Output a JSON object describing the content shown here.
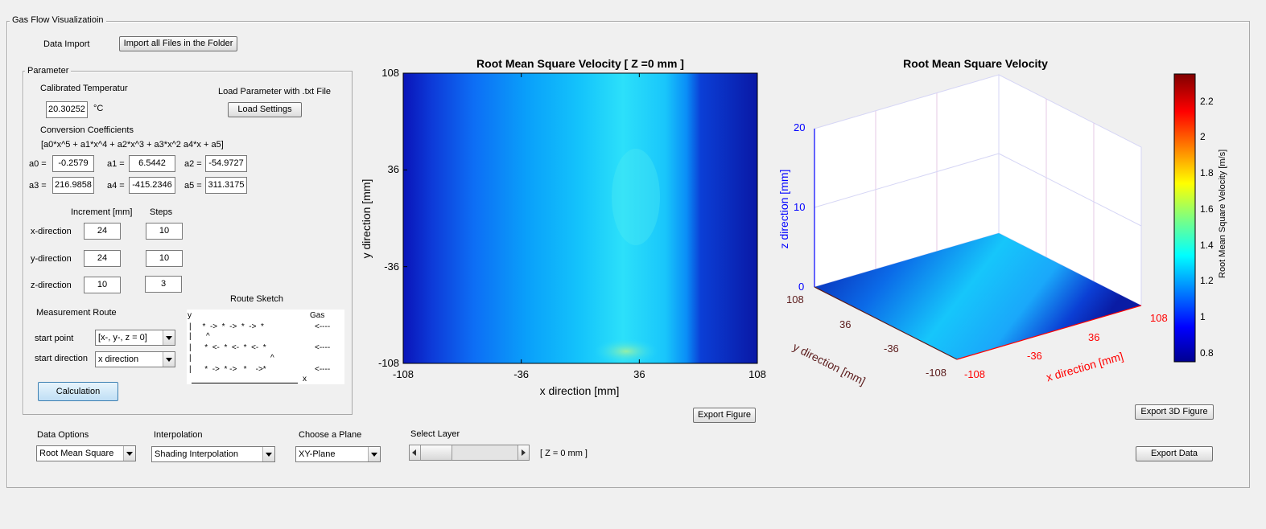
{
  "panel": {
    "title": "Gas Flow Visualizatioin"
  },
  "import": {
    "label": "Data Import",
    "button": "Import all Files in the Folder"
  },
  "parameter": {
    "title": "Parameter",
    "calibrated_label": "Calibrated Temperatur",
    "temperature": "20.30252",
    "temp_unit": "°C",
    "load_label": "Load Parameter with .txt File",
    "load_button": "Load Settings",
    "conv_label": "Conversion Coefficients",
    "formula": "[a0*x^5 + a1*x^4 + a2*x^3 + a3*x^2 a4*x + a5]",
    "coeffs": [
      {
        "label": "a0 =",
        "value": "-0.2579"
      },
      {
        "label": "a1 =",
        "value": "6.5442"
      },
      {
        "label": "a2 =",
        "value": "-54.9727"
      },
      {
        "label": "a3 =",
        "value": "216.9858"
      },
      {
        "label": "a4 =",
        "value": "-415.2346"
      },
      {
        "label": "a5 =",
        "value": "311.3175"
      }
    ],
    "increment_header": "Increment [mm]",
    "steps_header": "Steps",
    "directions": [
      {
        "label": "x-direction",
        "increment": "24",
        "steps": "10"
      },
      {
        "label": "y-direction",
        "increment": "24",
        "steps": "10"
      },
      {
        "label": "z-direction",
        "increment": "10",
        "steps": "3"
      }
    ],
    "route_label": "Measurement Route",
    "sketch_label": "Route Sketch",
    "start_point_label": "start point",
    "start_point_value": "[x-, y-, z = 0]",
    "start_dir_label": "start direction",
    "start_dir_value": "x direction",
    "calc_button": "Calculation",
    "sketch": {
      "y": "y",
      "gas": "Gas",
      "row1": "|     *  ->  *  ->  *  ->  *",
      "up1": "^",
      "row2": "|      *  <-  *  <-  *  <-  *",
      "up2": "^",
      "row3": "|      *  ->  * ->   *    ->*",
      "bar": "|",
      "arrow": "<----",
      "x": "x"
    }
  },
  "chart2d": {
    "title": "Root Mean Square Velocity  [ Z =0 mm ]",
    "xlabel": "x direction [mm]",
    "ylabel": "y direction [mm]",
    "xticks": [
      "-108",
      "-36",
      "36",
      "108"
    ],
    "yticks": [
      "108",
      "36",
      "-36",
      "-108"
    ],
    "export_button": "Export Figure"
  },
  "chart3d": {
    "title": "Root Mean Square Velocity",
    "zlabel": "z direction [mm]",
    "ylabel": "y direction [mm]",
    "xlabel": "x direction [mm]",
    "zticks": [
      "20",
      "10",
      "0"
    ],
    "yticks": [
      "108",
      "36",
      "-36",
      "-108"
    ],
    "xticks": [
      "-108",
      "-36",
      "36",
      "108"
    ],
    "colorbar_label": "Root Mean Square Velocity [m/s]",
    "colorbar_ticks": [
      "2.2",
      "2",
      "1.8",
      "1.6",
      "1.4",
      "1.2",
      "1",
      "0.8"
    ],
    "export3d_button": "Export 3D Figure",
    "export_data_button": "Export Data"
  },
  "options": {
    "data_label": "Data Options",
    "data_value": "Root Mean Square",
    "interp_label": "Interpolation",
    "interp_value": "Shading Interpolation",
    "plane_label": "Choose a Plane",
    "plane_value": "XY-Plane",
    "layer_label": "Select Layer",
    "layer_text": "[ Z = 0 mm ]"
  },
  "colors": {
    "axis_blue": "#0000ff",
    "axis_red": "#ff0000",
    "axis_dark": "#5a1a1a"
  },
  "chart_data": {
    "type": "heatmap",
    "title": "Root Mean Square Velocity  [ Z =0 mm ]",
    "xlabel": "x direction [mm]",
    "ylabel": "y direction [mm]",
    "xlim": [
      -108,
      108
    ],
    "ylim": [
      -108,
      108
    ],
    "x": [
      -108,
      -84,
      -60,
      -36,
      -12,
      12,
      36,
      60,
      84,
      108
    ],
    "y": [
      108,
      84,
      60,
      36,
      12,
      -12,
      -36,
      -60,
      -84,
      -108
    ],
    "values": [
      [
        0.85,
        0.95,
        1.05,
        1.15,
        1.25,
        1.3,
        1.35,
        1.25,
        0.9,
        0.8
      ],
      [
        0.85,
        0.95,
        1.05,
        1.15,
        1.25,
        1.35,
        1.38,
        1.25,
        0.9,
        0.8
      ],
      [
        0.85,
        0.95,
        1.08,
        1.18,
        1.25,
        1.38,
        1.4,
        1.28,
        0.9,
        0.8
      ],
      [
        0.85,
        0.98,
        1.1,
        1.2,
        1.3,
        1.4,
        1.45,
        1.3,
        0.9,
        0.8
      ],
      [
        0.85,
        0.98,
        1.1,
        1.22,
        1.32,
        1.4,
        1.42,
        1.3,
        0.9,
        0.8
      ],
      [
        0.85,
        0.95,
        1.08,
        1.2,
        1.3,
        1.38,
        1.4,
        1.28,
        0.9,
        0.8
      ],
      [
        0.85,
        0.95,
        1.08,
        1.2,
        1.32,
        1.4,
        1.42,
        1.28,
        0.9,
        0.8
      ],
      [
        0.85,
        0.95,
        1.05,
        1.18,
        1.3,
        1.38,
        1.42,
        1.28,
        0.9,
        0.8
      ],
      [
        0.85,
        0.95,
        1.05,
        1.18,
        1.32,
        1.4,
        1.45,
        1.3,
        0.9,
        0.8
      ],
      [
        0.85,
        0.95,
        1.05,
        1.2,
        1.35,
        1.45,
        1.55,
        1.3,
        0.9,
        0.8
      ]
    ],
    "colorbar": {
      "label": "Root Mean Square Velocity [m/s]",
      "range": [
        0.75,
        2.35
      ]
    }
  }
}
